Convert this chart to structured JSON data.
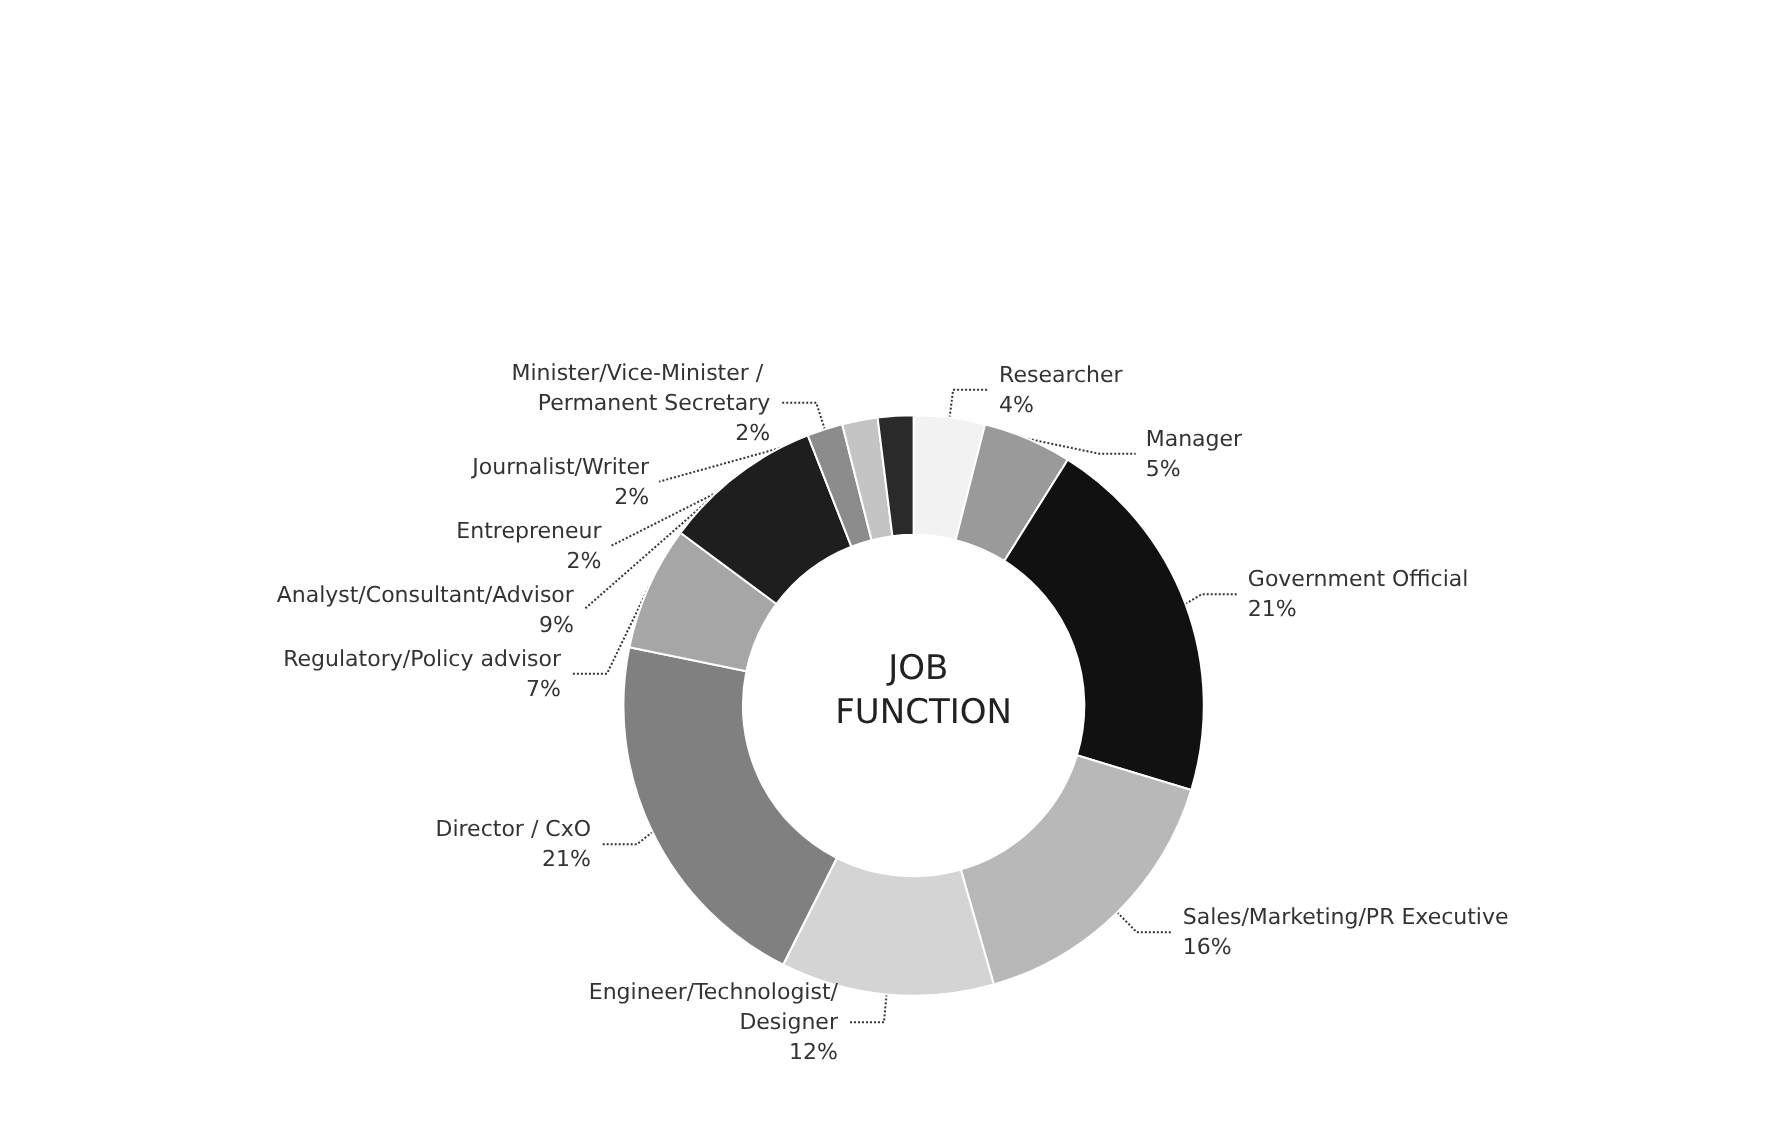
{
  "chart_data": {
    "type": "donut",
    "title": "JOB FUNCTION",
    "categories": [
      "Researcher",
      "Manager",
      "Government Official",
      "Sales/Marketing/PR Executive",
      "Engineer/Technologist/Designer",
      "Director / CxO",
      "Regulatory/Policy advisor",
      "Analyst/Consultant/Advisor",
      "Minister/Vice-Minister / Permanent Secretary",
      "Entrepreneur",
      "Journalist/Writer"
    ],
    "values": [
      4,
      5,
      21,
      16,
      12,
      21,
      7,
      9,
      2,
      2,
      2
    ],
    "colors": [
      "#f2f2f2",
      "#9a9a9a",
      "#111111",
      "#b8b8b8",
      "#d4d4d4",
      "#808080",
      "#a6a6a6",
      "#1e1e1e",
      "#8c8c8c",
      "#c4c4c4",
      "#2a2a2a"
    ],
    "value_labels": [
      "4%",
      "5%",
      "21%",
      "16%",
      "12%",
      "21%",
      "7%",
      "9%",
      "2%",
      "2%",
      "2%"
    ],
    "legend": false
  }
}
